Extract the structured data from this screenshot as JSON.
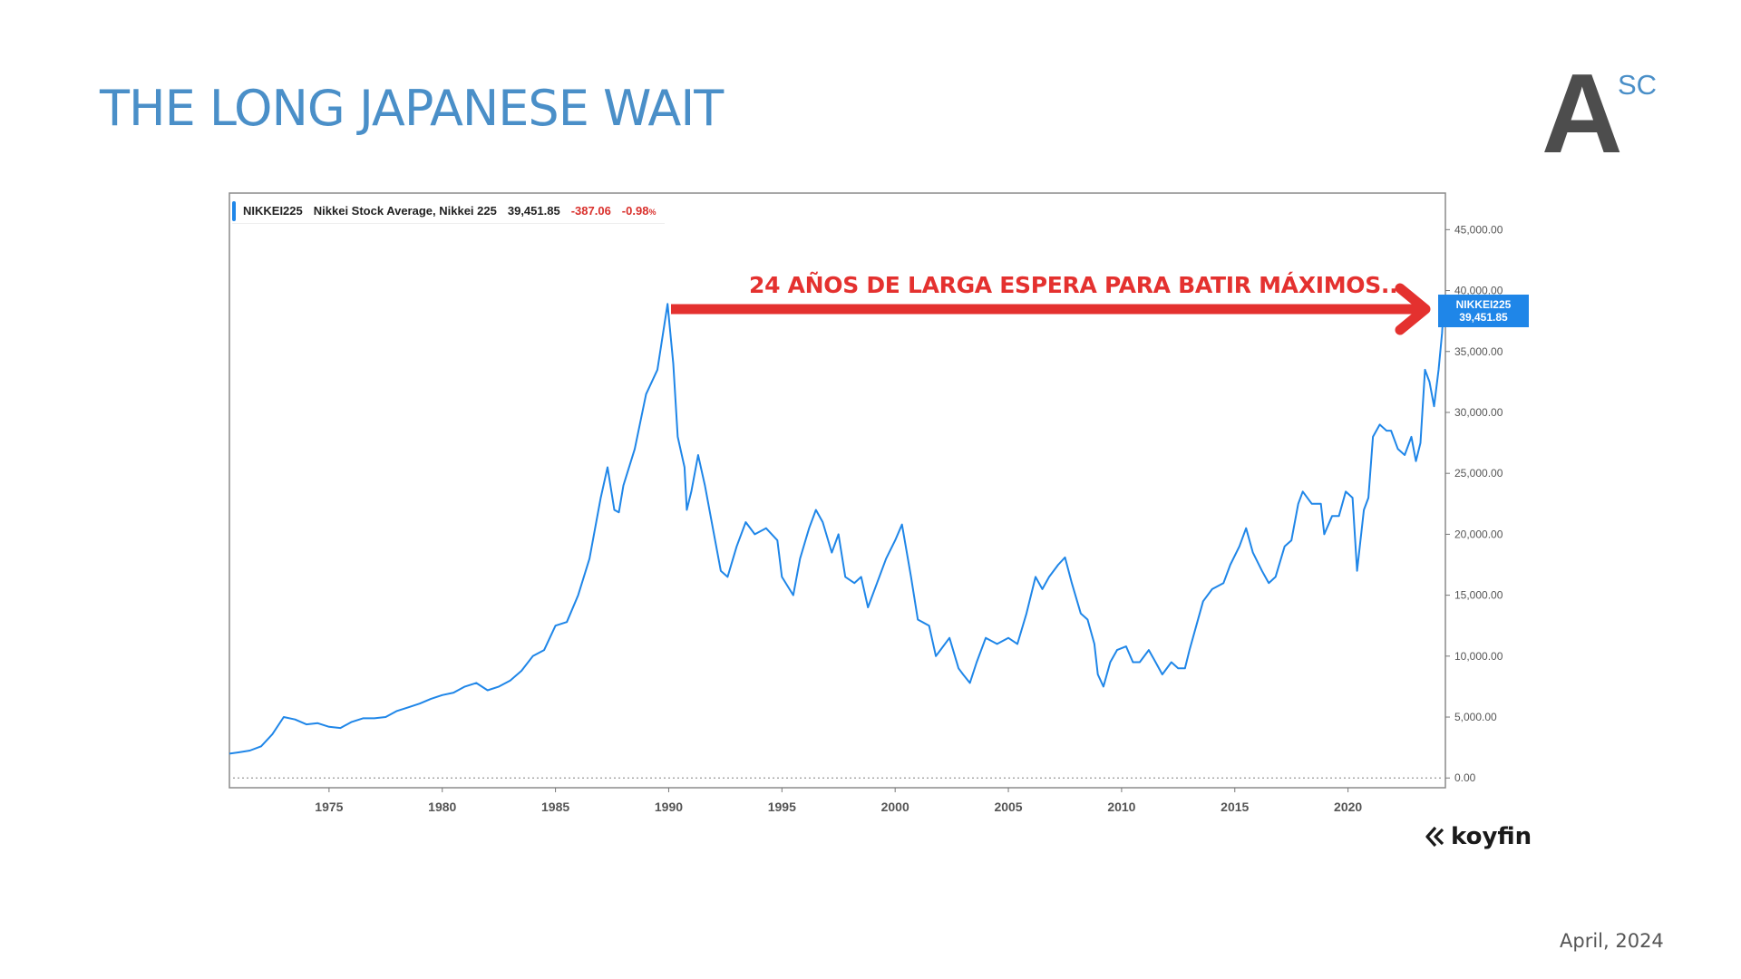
{
  "slide": {
    "title": "THE LONG JAPANESE WAIT",
    "logo": {
      "letter": "A",
      "superscript": "SC"
    },
    "date": "April, 2024",
    "source": "koyfin",
    "source_icon": "koyfin-chevron-icon"
  },
  "legend": {
    "ticker": "NIKKEI225",
    "name": "Nikkei Stock Average, Nikkei 225",
    "last": "39,451.85",
    "change": "-387.06",
    "change_pct": "-0.98",
    "pct_suffix": "%"
  },
  "price_tag": {
    "ticker": "NIKKEI225",
    "value": "39,451.85"
  },
  "annotation": {
    "text": "24 AÑOS DE LARGA ESPERA PARA BATIR MÁXIMOS...",
    "color": "#e4312f"
  },
  "colors": {
    "title": "#4a8fc8",
    "series": "#1f86e8",
    "negative": "#d9302c",
    "arrow": "#e4312f"
  },
  "chart_data": {
    "type": "line",
    "title": "",
    "xlabel": "",
    "ylabel": "",
    "xlim": [
      1970.6,
      2024.3
    ],
    "ylim": [
      -800,
      48000
    ],
    "y_axis_side": "right",
    "grid": false,
    "zero_line": "dotted",
    "x_ticks": [
      1975,
      1980,
      1985,
      1990,
      1995,
      2000,
      2005,
      2010,
      2015,
      2020
    ],
    "x_tick_labels": [
      "1975",
      "1980",
      "1985",
      "1990",
      "1995",
      "2000",
      "2005",
      "2010",
      "2015",
      "2020"
    ],
    "y_ticks": [
      0,
      5000,
      10000,
      15000,
      20000,
      25000,
      30000,
      35000,
      40000,
      45000
    ],
    "y_tick_labels": [
      "0.00",
      "5,000.00",
      "10,000.00",
      "15,000.00",
      "20,000.00",
      "25,000.00",
      "30,000.00",
      "35,000.00",
      "40,000.00",
      "45,000.00"
    ],
    "series": [
      {
        "name": "NIKKEI225",
        "x": [
          1970.6,
          1971.0,
          1971.5,
          1972.0,
          1972.5,
          1973.0,
          1973.5,
          1974.0,
          1974.5,
          1975.0,
          1975.5,
          1976.0,
          1976.5,
          1977.0,
          1977.5,
          1978.0,
          1978.5,
          1979.0,
          1979.5,
          1980.0,
          1980.5,
          1981.0,
          1981.5,
          1982.0,
          1982.5,
          1983.0,
          1983.5,
          1984.0,
          1984.5,
          1985.0,
          1985.5,
          1986.0,
          1986.5,
          1987.0,
          1987.3,
          1987.6,
          1987.8,
          1988.0,
          1988.5,
          1989.0,
          1989.5,
          1989.95,
          1990.2,
          1990.4,
          1990.7,
          1990.8,
          1991.0,
          1991.3,
          1991.6,
          1992.0,
          1992.3,
          1992.6,
          1993.0,
          1993.4,
          1993.8,
          1994.3,
          1994.8,
          1995.0,
          1995.5,
          1995.8,
          1996.2,
          1996.5,
          1996.8,
          1997.2,
          1997.5,
          1997.8,
          1998.2,
          1998.5,
          1998.8,
          1999.2,
          1999.6,
          2000.0,
          2000.3,
          2000.7,
          2001.0,
          2001.5,
          2001.8,
          2002.0,
          2002.4,
          2002.8,
          2003.0,
          2003.3,
          2003.6,
          2004.0,
          2004.5,
          2005.0,
          2005.4,
          2005.8,
          2006.2,
          2006.5,
          2006.8,
          2007.2,
          2007.5,
          2007.8,
          2008.2,
          2008.5,
          2008.8,
          2008.95,
          2009.2,
          2009.5,
          2009.8,
          2010.2,
          2010.5,
          2010.8,
          2011.2,
          2011.5,
          2011.8,
          2012.2,
          2012.5,
          2012.8,
          2013.0,
          2013.3,
          2013.6,
          2014.0,
          2014.5,
          2014.8,
          2015.2,
          2015.5,
          2015.8,
          2016.2,
          2016.5,
          2016.8,
          2017.2,
          2017.5,
          2017.8,
          2018.0,
          2018.4,
          2018.8,
          2018.95,
          2019.3,
          2019.6,
          2019.9,
          2020.2,
          2020.4,
          2020.7,
          2020.9,
          2021.1,
          2021.4,
          2021.7,
          2021.9,
          2022.2,
          2022.5,
          2022.8,
          2023.0,
          2023.2,
          2023.4,
          2023.6,
          2023.8,
          2024.0,
          2024.15,
          2024.25
        ],
        "y": [
          2000,
          2100,
          2250,
          2600,
          3600,
          5000,
          4800,
          4400,
          4500,
          4200,
          4100,
          4600,
          4900,
          4900,
          5000,
          5500,
          5800,
          6100,
          6500,
          6800,
          7000,
          7500,
          7800,
          7200,
          7500,
          8000,
          8800,
          10000,
          10500,
          12500,
          12800,
          15000,
          18000,
          23000,
          25500,
          22000,
          21800,
          24000,
          27000,
          31500,
          33500,
          38900,
          34000,
          28000,
          25500,
          22000,
          23500,
          26500,
          24000,
          20000,
          17000,
          16500,
          19000,
          21000,
          20000,
          20500,
          19500,
          16500,
          15000,
          18000,
          20500,
          22000,
          21000,
          18500,
          20000,
          16500,
          16000,
          16500,
          14000,
          16000,
          18000,
          19500,
          20800,
          16500,
          13000,
          12500,
          10000,
          10500,
          11500,
          9000,
          8500,
          7800,
          9500,
          11500,
          11000,
          11500,
          11000,
          13500,
          16500,
          15500,
          16500,
          17500,
          18100,
          16000,
          13500,
          13000,
          11000,
          8500,
          7500,
          9500,
          10500,
          10800,
          9500,
          9500,
          10500,
          9500,
          8500,
          9500,
          9000,
          9000,
          10500,
          12500,
          14500,
          15500,
          16000,
          17500,
          19000,
          20500,
          18500,
          17000,
          16000,
          16500,
          19000,
          19500,
          22500,
          23500,
          22500,
          22500,
          20000,
          21500,
          21500,
          23500,
          23000,
          17000,
          22000,
          23000,
          28000,
          29000,
          28500,
          28500,
          27000,
          26500,
          28000,
          26000,
          27500,
          33500,
          32500,
          30500,
          33500,
          36500,
          39450
        ]
      }
    ]
  }
}
